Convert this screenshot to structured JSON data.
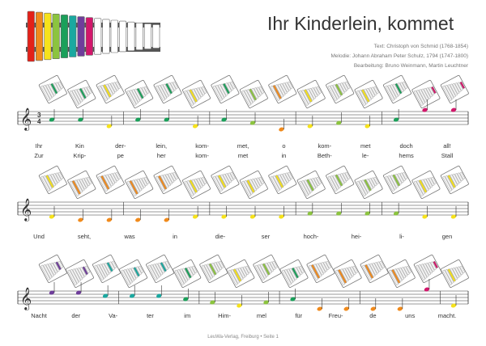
{
  "title": "Ihr Kinderlein, kommet",
  "credits": [
    "Text: Christoph von Schmid (1768-1854)",
    "Melodie: Johann Abraham Peter Schulz, 1794 (1747-1800)",
    "Bearbeitung: Bruno Weinmann, Martin Leuchtner"
  ],
  "footer": "LeuWa-Verlag, Freiburg • Seite 1",
  "colors": {
    "c": "#e32119",
    "d": "#f08a1c",
    "e": "#f6e21b",
    "f": "#8cc43f",
    "g": "#1aa05a",
    "a": "#1aa8a0",
    "h": "#6f3d9b",
    "c2": "#d2176b"
  },
  "systems": [
    {
      "verses": [
        [
          "Ihr",
          "Kin",
          "der-",
          "lein,",
          "kom-",
          "met,",
          "o",
          "kom-",
          "met",
          "doch",
          "all!"
        ],
        [
          "Zur",
          "Krip-",
          "pe",
          "her",
          "kom-",
          "met",
          "in",
          "Beth-",
          "le-",
          "hems",
          "Stall"
        ]
      ],
      "notes": [
        "g",
        "g",
        "e",
        "g",
        "g",
        "e",
        "g",
        "f",
        "d",
        "e",
        "f",
        "e",
        "g",
        "c2",
        "c2"
      ]
    },
    {
      "verses": [
        [
          "Und",
          "seht,",
          "was",
          "in",
          "die-",
          "ser",
          "hoch-",
          "hei-",
          "li-",
          "gen"
        ]
      ],
      "notes": [
        "e",
        "d",
        "d",
        "d",
        "d",
        "e",
        "e",
        "e",
        "e",
        "f",
        "f",
        "f",
        "f",
        "e",
        "e"
      ]
    },
    {
      "verses": [
        [
          "Nacht",
          "der",
          "Va-",
          "ter",
          "im",
          "Him-",
          "mel",
          "für",
          "Freu-",
          "de",
          "uns",
          "macht."
        ]
      ],
      "notes": [
        "h",
        "h",
        "a",
        "a",
        "a",
        "g",
        "f",
        "e",
        "f",
        "g",
        "d",
        "d",
        "d",
        "d",
        "c2",
        "e"
      ]
    }
  ]
}
